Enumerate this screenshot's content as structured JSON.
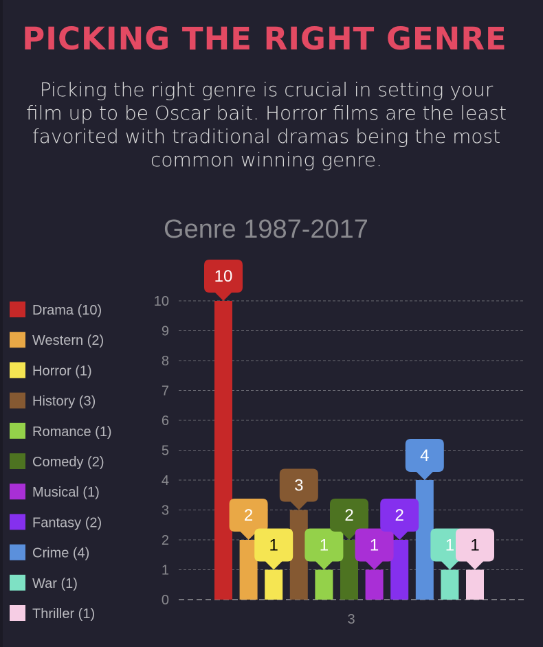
{
  "header": {
    "title": "PICKING THE RIGHT GENRE",
    "intro": "Picking the right genre is crucial in setting your film up to be Oscar bait. Horror films are the least favorited with traditional dramas being the most common winning genre."
  },
  "colors": {
    "background": "#22212f",
    "title": "#e34a63"
  },
  "chart_data": {
    "type": "bar",
    "title": "Genre 1987-2017",
    "categories": [
      "3"
    ],
    "ylim": [
      0,
      10
    ],
    "yticks": [
      "0",
      "1",
      "2",
      "3",
      "4",
      "5",
      "6",
      "7",
      "8",
      "9",
      "10"
    ],
    "grid": true,
    "legend_position": "left",
    "series": [
      {
        "name": "Drama",
        "legend": "Drama (10)",
        "value": 10,
        "label": "10",
        "color": "#c62828",
        "label_text_color": "#ffffff"
      },
      {
        "name": "Western",
        "legend": "Western (2)",
        "value": 2,
        "label": "2",
        "color": "#e9a846",
        "label_text_color": "#ffffff"
      },
      {
        "name": "Horror",
        "legend": "Horror (1)",
        "value": 1,
        "label": "1",
        "color": "#f5e552",
        "label_text_color": "#000000"
      },
      {
        "name": "History",
        "legend": "History (3)",
        "value": 3,
        "label": "3",
        "color": "#855932",
        "label_text_color": "#ffffff"
      },
      {
        "name": "Romance",
        "legend": "Romance (1)",
        "value": 1,
        "label": "1",
        "color": "#94d14a",
        "label_text_color": "#ffffff"
      },
      {
        "name": "Comedy",
        "legend": "Comedy (2)",
        "value": 2,
        "label": "2",
        "color": "#4d7321",
        "label_text_color": "#ffffff"
      },
      {
        "name": "Musical",
        "legend": "Musical (1)",
        "value": 1,
        "label": "1",
        "color": "#a92fd6",
        "label_text_color": "#ffffff"
      },
      {
        "name": "Fantasy",
        "legend": "Fantasy (2)",
        "value": 2,
        "label": "2",
        "color": "#8530ee",
        "label_text_color": "#ffffff"
      },
      {
        "name": "Crime",
        "legend": "Crime (4)",
        "value": 4,
        "label": "4",
        "color": "#5b90dc",
        "label_text_color": "#ffffff"
      },
      {
        "name": "War",
        "legend": "War (1)",
        "value": 1,
        "label": "1",
        "color": "#7ee1c4",
        "label_text_color": "#ffffff"
      },
      {
        "name": "Thriller",
        "legend": "Thriller (1)",
        "value": 1,
        "label": "1",
        "color": "#f6cde4",
        "label_text_color": "#000000"
      }
    ]
  }
}
